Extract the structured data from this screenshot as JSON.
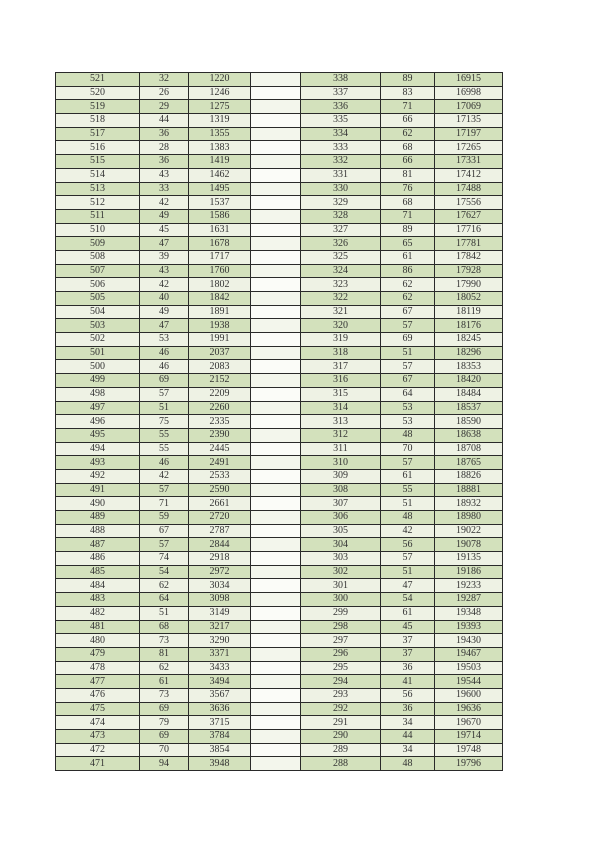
{
  "table": {
    "left": [
      [
        "521",
        "32",
        "1220"
      ],
      [
        "520",
        "26",
        "1246"
      ],
      [
        "519",
        "29",
        "1275"
      ],
      [
        "518",
        "44",
        "1319"
      ],
      [
        "517",
        "36",
        "1355"
      ],
      [
        "516",
        "28",
        "1383"
      ],
      [
        "515",
        "36",
        "1419"
      ],
      [
        "514",
        "43",
        "1462"
      ],
      [
        "513",
        "33",
        "1495"
      ],
      [
        "512",
        "42",
        "1537"
      ],
      [
        "511",
        "49",
        "1586"
      ],
      [
        "510",
        "45",
        "1631"
      ],
      [
        "509",
        "47",
        "1678"
      ],
      [
        "508",
        "39",
        "1717"
      ],
      [
        "507",
        "43",
        "1760"
      ],
      [
        "506",
        "42",
        "1802"
      ],
      [
        "505",
        "40",
        "1842"
      ],
      [
        "504",
        "49",
        "1891"
      ],
      [
        "503",
        "47",
        "1938"
      ],
      [
        "502",
        "53",
        "1991"
      ],
      [
        "501",
        "46",
        "2037"
      ],
      [
        "500",
        "46",
        "2083"
      ],
      [
        "499",
        "69",
        "2152"
      ],
      [
        "498",
        "57",
        "2209"
      ],
      [
        "497",
        "51",
        "2260"
      ],
      [
        "496",
        "75",
        "2335"
      ],
      [
        "495",
        "55",
        "2390"
      ],
      [
        "494",
        "55",
        "2445"
      ],
      [
        "493",
        "46",
        "2491"
      ],
      [
        "492",
        "42",
        "2533"
      ],
      [
        "491",
        "57",
        "2590"
      ],
      [
        "490",
        "71",
        "2661"
      ],
      [
        "489",
        "59",
        "2720"
      ],
      [
        "488",
        "67",
        "2787"
      ],
      [
        "487",
        "57",
        "2844"
      ],
      [
        "486",
        "74",
        "2918"
      ],
      [
        "485",
        "54",
        "2972"
      ],
      [
        "484",
        "62",
        "3034"
      ],
      [
        "483",
        "64",
        "3098"
      ],
      [
        "482",
        "51",
        "3149"
      ],
      [
        "481",
        "68",
        "3217"
      ],
      [
        "480",
        "73",
        "3290"
      ],
      [
        "479",
        "81",
        "3371"
      ],
      [
        "478",
        "62",
        "3433"
      ],
      [
        "477",
        "61",
        "3494"
      ],
      [
        "476",
        "73",
        "3567"
      ],
      [
        "475",
        "69",
        "3636"
      ],
      [
        "474",
        "79",
        "3715"
      ],
      [
        "473",
        "69",
        "3784"
      ],
      [
        "472",
        "70",
        "3854"
      ],
      [
        "471",
        "94",
        "3948"
      ]
    ],
    "right": [
      [
        "338",
        "89",
        "16915"
      ],
      [
        "337",
        "83",
        "16998"
      ],
      [
        "336",
        "71",
        "17069"
      ],
      [
        "335",
        "66",
        "17135"
      ],
      [
        "334",
        "62",
        "17197"
      ],
      [
        "333",
        "68",
        "17265"
      ],
      [
        "332",
        "66",
        "17331"
      ],
      [
        "331",
        "81",
        "17412"
      ],
      [
        "330",
        "76",
        "17488"
      ],
      [
        "329",
        "68",
        "17556"
      ],
      [
        "328",
        "71",
        "17627"
      ],
      [
        "327",
        "89",
        "17716"
      ],
      [
        "326",
        "65",
        "17781"
      ],
      [
        "325",
        "61",
        "17842"
      ],
      [
        "324",
        "86",
        "17928"
      ],
      [
        "323",
        "62",
        "17990"
      ],
      [
        "322",
        "62",
        "18052"
      ],
      [
        "321",
        "67",
        "18119"
      ],
      [
        "320",
        "57",
        "18176"
      ],
      [
        "319",
        "69",
        "18245"
      ],
      [
        "318",
        "51",
        "18296"
      ],
      [
        "317",
        "57",
        "18353"
      ],
      [
        "316",
        "67",
        "18420"
      ],
      [
        "315",
        "64",
        "18484"
      ],
      [
        "314",
        "53",
        "18537"
      ],
      [
        "313",
        "53",
        "18590"
      ],
      [
        "312",
        "48",
        "18638"
      ],
      [
        "311",
        "70",
        "18708"
      ],
      [
        "310",
        "57",
        "18765"
      ],
      [
        "309",
        "61",
        "18826"
      ],
      [
        "308",
        "55",
        "18881"
      ],
      [
        "307",
        "51",
        "18932"
      ],
      [
        "306",
        "48",
        "18980"
      ],
      [
        "305",
        "42",
        "19022"
      ],
      [
        "304",
        "56",
        "19078"
      ],
      [
        "303",
        "57",
        "19135"
      ],
      [
        "302",
        "51",
        "19186"
      ],
      [
        "301",
        "47",
        "19233"
      ],
      [
        "300",
        "54",
        "19287"
      ],
      [
        "299",
        "61",
        "19348"
      ],
      [
        "298",
        "45",
        "19393"
      ],
      [
        "297",
        "37",
        "19430"
      ],
      [
        "296",
        "37",
        "19467"
      ],
      [
        "295",
        "36",
        "19503"
      ],
      [
        "294",
        "41",
        "19544"
      ],
      [
        "293",
        "56",
        "19600"
      ],
      [
        "292",
        "36",
        "19636"
      ],
      [
        "291",
        "34",
        "19670"
      ],
      [
        "290",
        "44",
        "19714"
      ],
      [
        "289",
        "34",
        "19748"
      ],
      [
        "288",
        "48",
        "19796"
      ]
    ]
  },
  "colors": {
    "row_dark": "#d3e1bc",
    "row_light": "#eef2e4",
    "border": "#2a2a2a"
  }
}
